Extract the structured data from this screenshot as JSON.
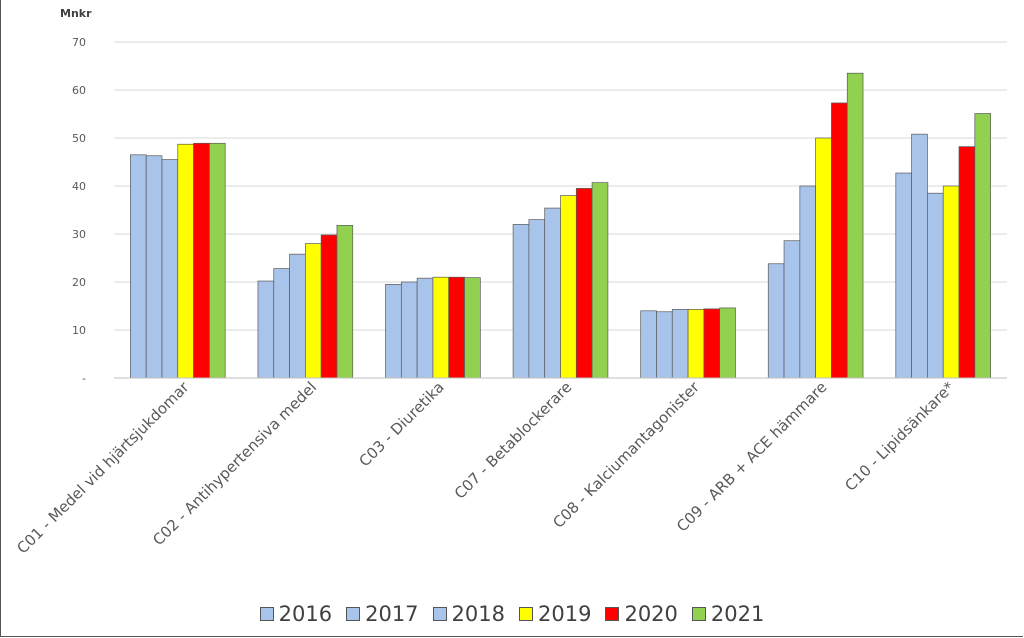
{
  "chart_data": {
    "type": "bar",
    "ylabel": "Mnkr",
    "ylim": [
      0,
      70
    ],
    "yticks": [
      {
        "value": 0,
        "label": "-"
      },
      {
        "value": 10,
        "label": "10"
      },
      {
        "value": 20,
        "label": "20"
      },
      {
        "value": 30,
        "label": "30"
      },
      {
        "value": 40,
        "label": "40"
      },
      {
        "value": 50,
        "label": "50"
      },
      {
        "value": 60,
        "label": "60"
      },
      {
        "value": 70,
        "label": "70"
      }
    ],
    "grid": true,
    "legend_position": "bottom",
    "categories": [
      "C01 - Medel vid hjärtsjukdomar",
      "C02 - Antihypertensiva medel",
      "C03 - Diuretika",
      "C07 - Betablockerare",
      "C08 - Kalciumantagonister",
      "C09 - ARB + ACE hämmare",
      "C10 - Lipidsänkare*"
    ],
    "series": [
      {
        "name": "2016",
        "color": "#a9c4eb",
        "values": [
          46.5,
          20.2,
          19.5,
          32.0,
          14.0,
          23.8,
          42.7
        ]
      },
      {
        "name": "2017",
        "color": "#a9c4eb",
        "values": [
          46.3,
          22.8,
          20.0,
          33.0,
          13.8,
          28.6,
          50.8
        ]
      },
      {
        "name": "2018",
        "color": "#a9c4eb",
        "values": [
          45.5,
          25.8,
          20.8,
          35.4,
          14.3,
          40.0,
          38.5
        ]
      },
      {
        "name": "2019",
        "color": "#ffff00",
        "values": [
          48.7,
          28.0,
          21.0,
          38.0,
          14.3,
          50.0,
          40.0
        ]
      },
      {
        "name": "2020",
        "color": "#ff0000",
        "values": [
          48.9,
          29.8,
          21.0,
          39.5,
          14.4,
          57.3,
          48.2
        ]
      },
      {
        "name": "2021",
        "color": "#92d050",
        "values": [
          48.9,
          31.8,
          20.9,
          40.7,
          14.6,
          63.5,
          55.1
        ]
      }
    ]
  }
}
